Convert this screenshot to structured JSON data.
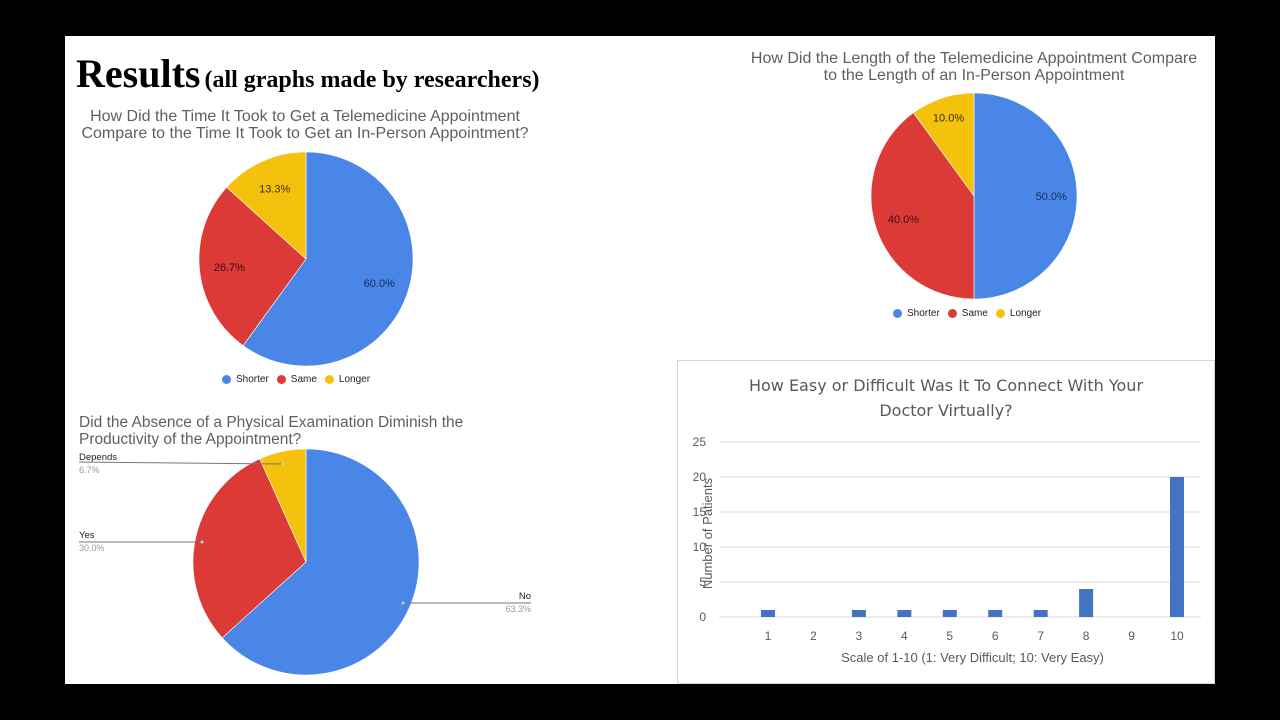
{
  "slide": {
    "heading": "Results",
    "subheading": "(all graphs made by researchers)"
  },
  "colors": {
    "blue": "#4a86e8",
    "red": "#dc3a37",
    "yellow": "#f4c20d",
    "bar_blue": "#4472c4",
    "title_gray": "#5f5f5f"
  },
  "chart_data": [
    {
      "type": "pie",
      "title": "How Did the Time It Took to Get a Telemedicine Appointment Compare to the Time It Took to Get an In-Person Appointment?",
      "title_lines": [
        "How Did the Time It Took to Get a Telemedicine Appointment",
        "Compare to the Time It Took to Get an In-Person Appointment?"
      ],
      "categories": [
        "Shorter",
        "Same",
        "Longer"
      ],
      "values": [
        60.0,
        26.7,
        13.3
      ],
      "labels": [
        "60.0%",
        "26.7%",
        "13.3%"
      ],
      "legend": [
        "Shorter",
        "Same",
        "Longer"
      ],
      "legend_position": "bottom"
    },
    {
      "type": "pie",
      "title": "How Did the Length of the Telemedicine Appointment Compare to the Length of an In-Person Appointment",
      "title_lines": [
        "How Did the Length of the Telemedicine Appointment Compare",
        "to the Length of an In-Person Appointment"
      ],
      "categories": [
        "Shorter",
        "Same",
        "Longer"
      ],
      "values": [
        50.0,
        40.0,
        10.0
      ],
      "labels": [
        "50.0%",
        "40.0%",
        "10.0%"
      ],
      "legend": [
        "Shorter",
        "Same",
        "Longer"
      ],
      "legend_position": "bottom"
    },
    {
      "type": "pie",
      "title": "Did the Absence of a Physical Examination Diminish the Productivity of the Appointment?",
      "title_lines": [
        "Did the Absence of a Physical Examination Diminish the",
        "Productivity of the Appointment?"
      ],
      "categories": [
        "No",
        "Yes",
        "Depends"
      ],
      "values": [
        63.3,
        30.0,
        6.7
      ],
      "labels": [
        "63.3%",
        "30.0%",
        "6.7%"
      ],
      "legend_position": "leader-lines"
    },
    {
      "type": "bar",
      "title": "How Easy or Difficult Was It To Connect With Your Doctor Virtually?",
      "title_lines": [
        "How Easy or Difficult Was It To Connect With Your",
        "Doctor Virtually?"
      ],
      "categories": [
        "1",
        "2",
        "3",
        "4",
        "5",
        "6",
        "7",
        "8",
        "9",
        "10"
      ],
      "values": [
        1,
        0,
        1,
        1,
        1,
        1,
        1,
        4,
        0,
        20
      ],
      "xlabel": "Scale of 1-10 (1: Very Difficult; 10: Very Easy)",
      "ylabel": "Number of Patients",
      "ylim": [
        0,
        25
      ],
      "yticks": [
        "0",
        "5",
        "10",
        "15",
        "20",
        "25"
      ],
      "grid": true
    }
  ]
}
